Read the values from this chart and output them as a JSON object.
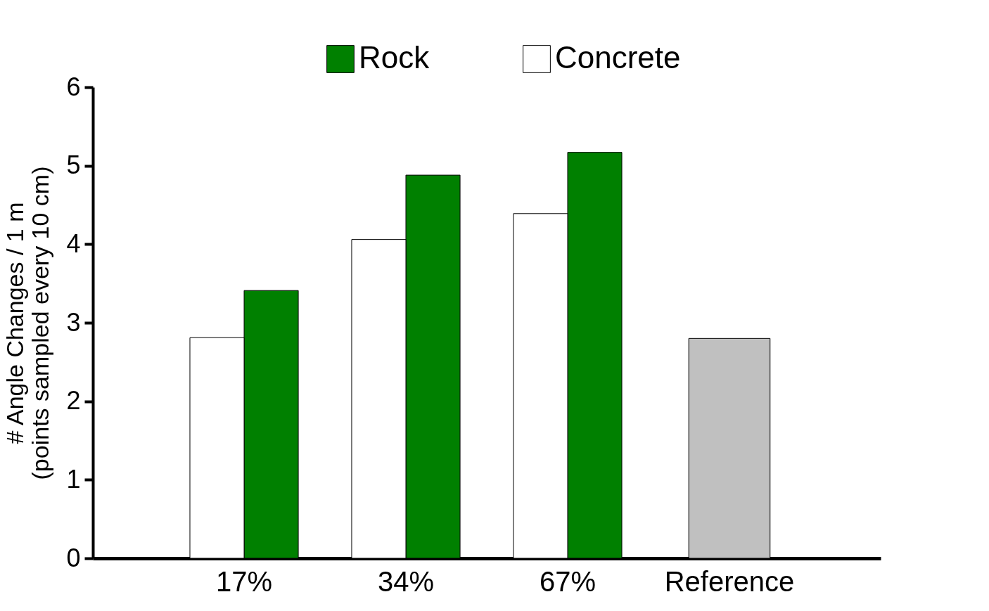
{
  "chart_data": {
    "type": "bar",
    "ylabel": "# Angle Changes / 1 m\n(points sampled every 10 cm)",
    "categories": [
      "17%",
      "34%",
      "67%",
      "Reference"
    ],
    "series": [
      {
        "name": "Rock",
        "color": "#008000",
        "values": [
          3.41,
          4.88,
          5.17,
          null
        ]
      },
      {
        "name": "Concrete",
        "color": "#ffffff",
        "values": [
          2.81,
          4.06,
          4.39,
          null
        ]
      },
      {
        "color": "#c0c0c0",
        "values": [
          null,
          null,
          null,
          2.8
        ]
      }
    ],
    "ylim": [
      0,
      6
    ],
    "yticks": [
      0,
      1,
      2,
      3,
      4,
      5,
      6
    ],
    "grid": false,
    "legend": "top"
  }
}
